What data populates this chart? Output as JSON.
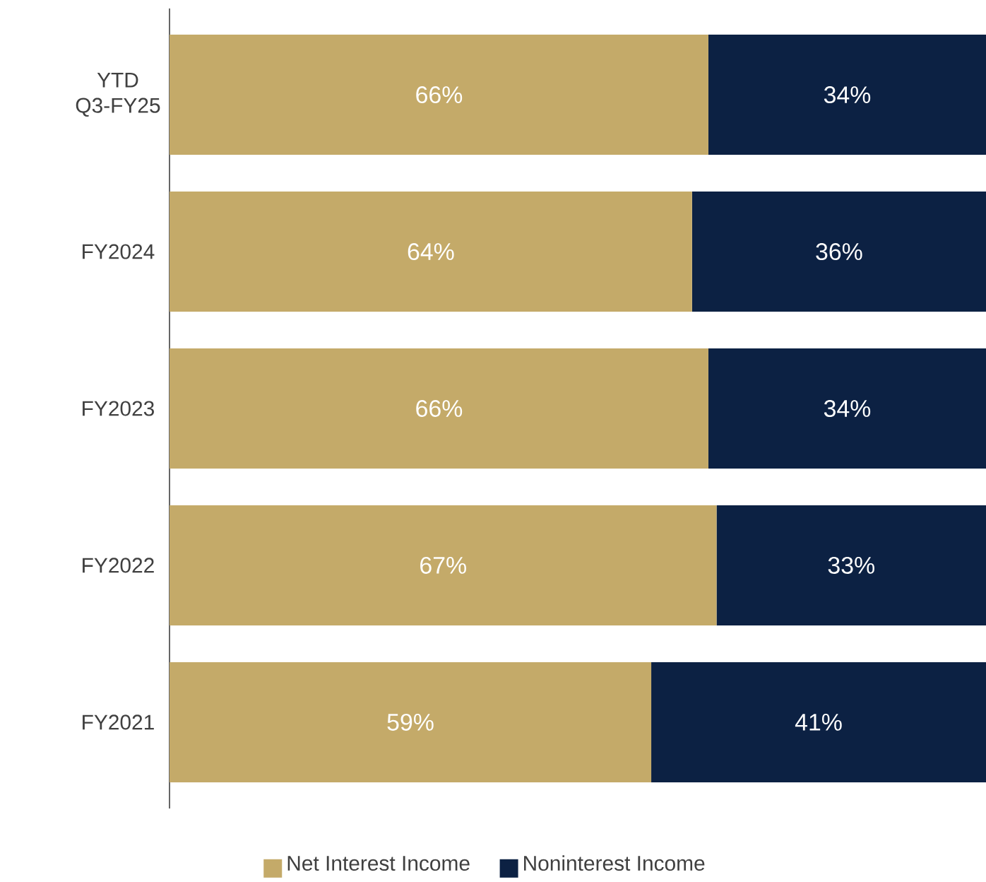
{
  "chart_data": {
    "type": "bar",
    "orientation": "horizontal",
    "stacked": true,
    "categories": [
      "YTD Q3-FY25",
      "FY2024",
      "FY2023",
      "FY2022",
      "FY2021"
    ],
    "tick_labels": "y",
    "legend": "bottom",
    "series": [
      {
        "name": "Net Interest Income",
        "color": "#c4aa69",
        "values": [
          66,
          64,
          66,
          67,
          59
        ],
        "value_labels": [
          "66%",
          "64%",
          "66%",
          "67%",
          "59%"
        ]
      },
      {
        "name": "Noninterest Income",
        "color": "#0c2143",
        "values": [
          34,
          36,
          34,
          33,
          41
        ],
        "value_labels": [
          "34%",
          "36%",
          "34%",
          "33%",
          "41%"
        ]
      }
    ]
  }
}
